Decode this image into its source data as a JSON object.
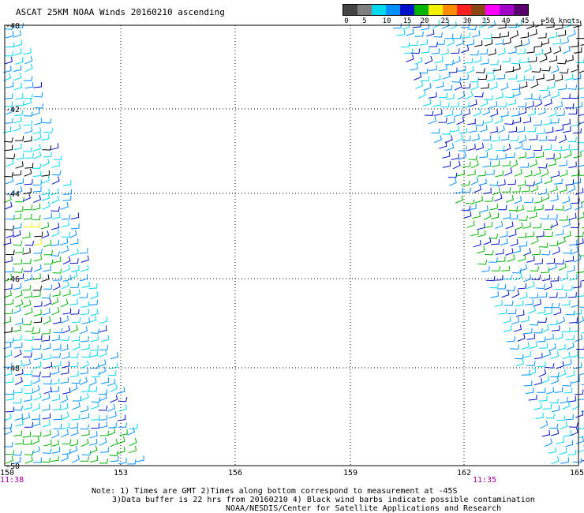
{
  "title": "ASCAT 25KM NOAA Winds 20160210 ascending",
  "legend": {
    "labels": [
      "0",
      "5",
      "10",
      "15",
      "20",
      "25",
      "30",
      "35",
      "40",
      "45",
      ">50 knots"
    ],
    "colors": [
      "#444444",
      "#7f7f7f",
      "#00d8f0",
      "#0090ff",
      "#0010c8",
      "#00b400",
      "#f0f000",
      "#ff8c00",
      "#ff2020",
      "#8b4513",
      "#ff00ff",
      "#a000c8",
      "#5a006e"
    ]
  },
  "map": {
    "lat_labels": [
      "-40",
      "-42",
      "-44",
      "-46",
      "-48",
      "-50"
    ],
    "lon_labels": [
      "150",
      "153",
      "156",
      "159",
      "162",
      "165"
    ],
    "time_labels": [
      "11:38",
      "11:35"
    ],
    "time_color": "#a000a0",
    "barb_colors": [
      "#00d8f0",
      "#0090ff",
      "#0010c8",
      "#00b400",
      "#f0f000",
      "#000000"
    ]
  },
  "notes": [
    "Note: 1) Times are GMT 2)Times along bottom correspond to measurement at -45S",
    "3)Data buffer is 22 hrs from 20160210 4) Black wind barbs indicate possible contamination",
    "NOAA/NESDIS/Center for Satellite Applications and Research"
  ]
}
